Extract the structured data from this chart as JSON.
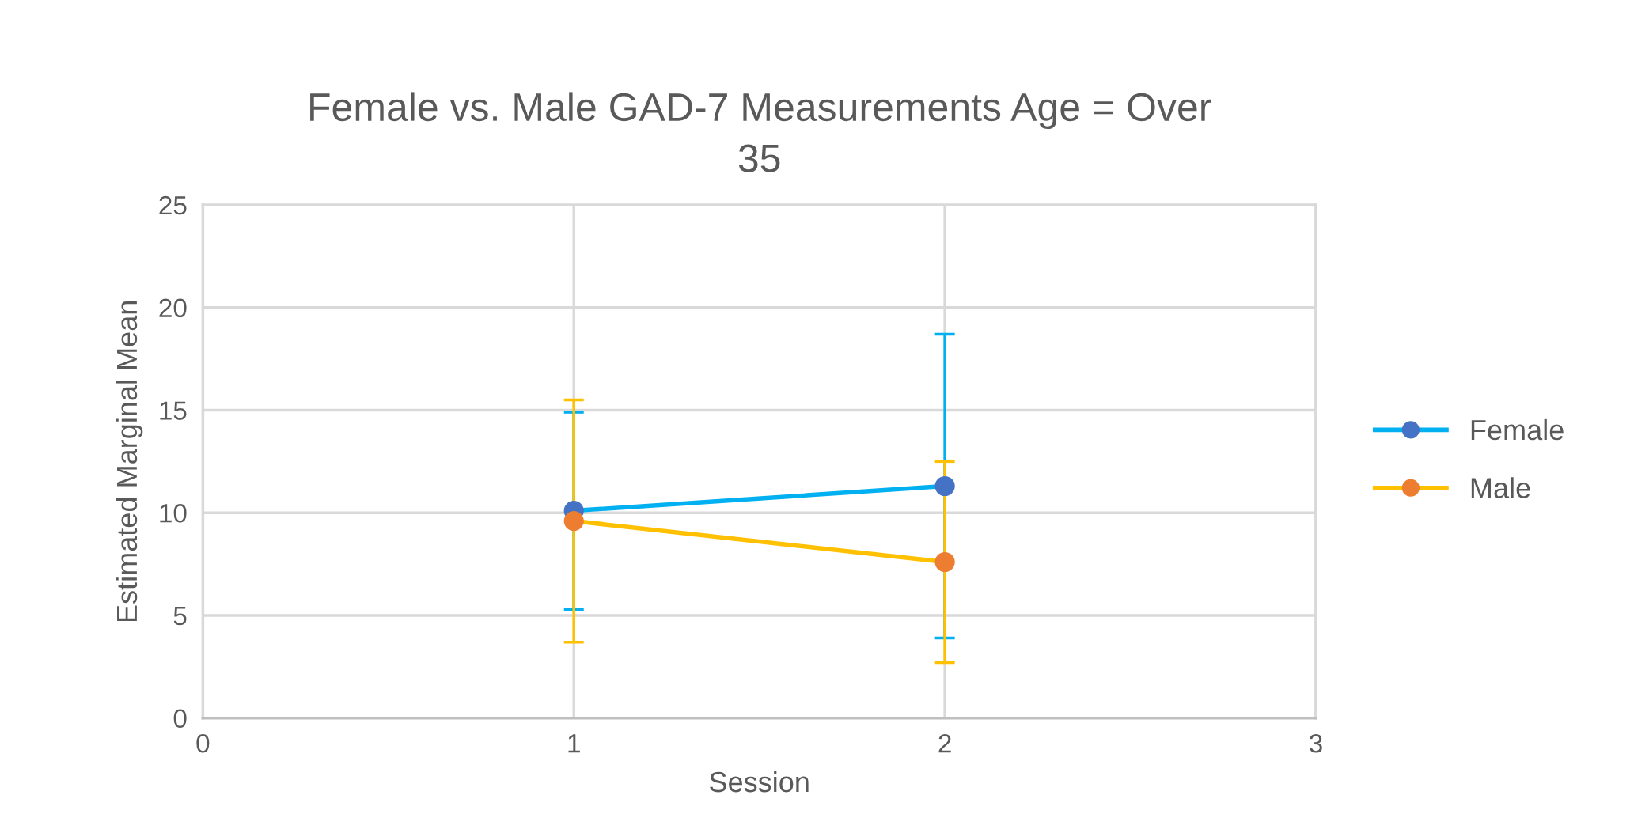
{
  "chart_data": {
    "type": "line",
    "title": "Female vs. Male GAD-7 Measurements Age = Over\n35",
    "xlabel": "Session",
    "ylabel": "Estimated Marginal Mean",
    "x": [
      1,
      2
    ],
    "series": [
      {
        "name": "Female",
        "color": "#00b0f0",
        "colors": [
          "#4472c4",
          "#4472c4"
        ],
        "values": [
          10.1,
          11.3
        ],
        "errors": [
          4.8,
          7.4
        ]
      },
      {
        "name": "Male",
        "color": "#ffc000",
        "colors": [
          "#ed7d31",
          "#ed7d31"
        ],
        "values": [
          9.6,
          7.6
        ],
        "errors": [
          5.9,
          4.9
        ]
      }
    ],
    "xlim": [
      0,
      3
    ],
    "xticks": [
      0,
      1,
      2,
      3
    ],
    "ylim": [
      0,
      25
    ],
    "yticks": [
      0,
      5,
      10,
      15,
      20,
      25
    ],
    "grid": true,
    "legend": "right",
    "marker": "circle",
    "line_style": "solid"
  }
}
